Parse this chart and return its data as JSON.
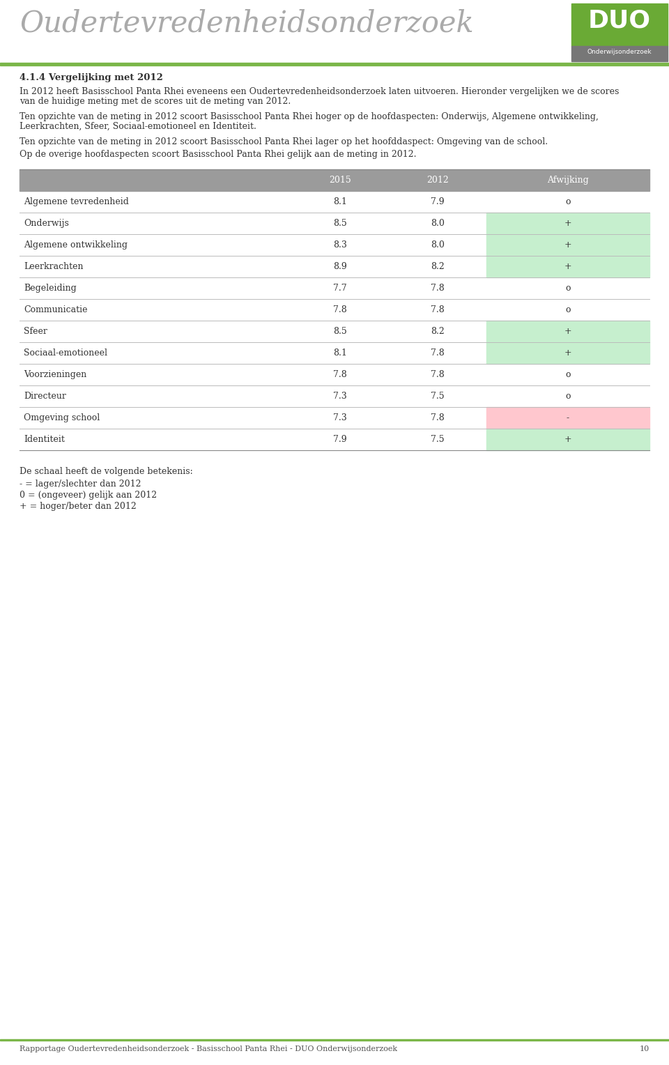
{
  "title": "Oudertevredenheidsonderzoek",
  "section_title": "4.1.4 Vergelijking met 2012",
  "para1a": "In 2012 heeft Basisschool Panta Rhei eveneens een Oudertevredenheidsonderzoek laten uitvoeren. Hieronder vergelijken we de scores",
  "para1b": "van de huidige meting met de scores uit de meting van 2012.",
  "para2a": "Ten opzichte van de meting in 2012 scoort Basisschool Panta Rhei hoger op de hoofdaspecten: Onderwijs, Algemene ontwikkeling,",
  "para2b": "Leerkrachten, Sfeer, Sociaal-emotioneel en Identiteit.",
  "para3": "Ten opzichte van de meting in 2012 scoort Basisschool Panta Rhei lager op het hoofddaspect: Omgeving van de school.",
  "para4": "Op de overige hoofdaspecten scoort Basisschool Panta Rhei gelijk aan de meting in 2012.",
  "col_headers": [
    "2015",
    "2012",
    "Afwijking"
  ],
  "rows": [
    {
      "label": "Algemene tevredenheid",
      "v2015": "8.1",
      "v2012": "7.9",
      "afwijking": "o",
      "color": null
    },
    {
      "label": "Onderwijs",
      "v2015": "8.5",
      "v2012": "8.0",
      "afwijking": "+",
      "color": "#c6efce"
    },
    {
      "label": "Algemene ontwikkeling",
      "v2015": "8.3",
      "v2012": "8.0",
      "afwijking": "+",
      "color": "#c6efce"
    },
    {
      "label": "Leerkrachten",
      "v2015": "8.9",
      "v2012": "8.2",
      "afwijking": "+",
      "color": "#c6efce"
    },
    {
      "label": "Begeleiding",
      "v2015": "7.7",
      "v2012": "7.8",
      "afwijking": "o",
      "color": null
    },
    {
      "label": "Communicatie",
      "v2015": "7.8",
      "v2012": "7.8",
      "afwijking": "o",
      "color": null
    },
    {
      "label": "Sfeer",
      "v2015": "8.5",
      "v2012": "8.2",
      "afwijking": "+",
      "color": "#c6efce"
    },
    {
      "label": "Sociaal-emotioneel",
      "v2015": "8.1",
      "v2012": "7.8",
      "afwijking": "+",
      "color": "#c6efce"
    },
    {
      "label": "Voorzieningen",
      "v2015": "7.8",
      "v2012": "7.8",
      "afwijking": "o",
      "color": null
    },
    {
      "label": "Directeur",
      "v2015": "7.3",
      "v2012": "7.5",
      "afwijking": "o",
      "color": null
    },
    {
      "label": "Omgeving school",
      "v2015": "7.3",
      "v2012": "7.8",
      "afwijking": "-",
      "color": "#ffc7ce"
    },
    {
      "label": "Identiteit",
      "v2015": "7.9",
      "v2012": "7.5",
      "afwijking": "+",
      "color": "#c6efce"
    }
  ],
  "legend_title": "De schaal heeft de volgende betekenis:",
  "legend_lines": [
    "- = lager/slechter dan 2012",
    "0 = (ongeveer) gelijk aan 2012",
    "+ = hoger/beter dan 2012"
  ],
  "footer": "Rapportage Oudertevredenheidsonderzoek - Basisschool Panta Rhei - DUO Onderwijsonderzoek",
  "page_number": "10",
  "header_bg": "#9b9b9b",
  "header_fg": "#ffffff",
  "line_color": "#bbbbbb",
  "title_color": "#aaaaaa",
  "duo_green": "#6aaa35",
  "duo_gray": "#777777",
  "green_line": "#7ab648",
  "bg_color": "#ffffff"
}
